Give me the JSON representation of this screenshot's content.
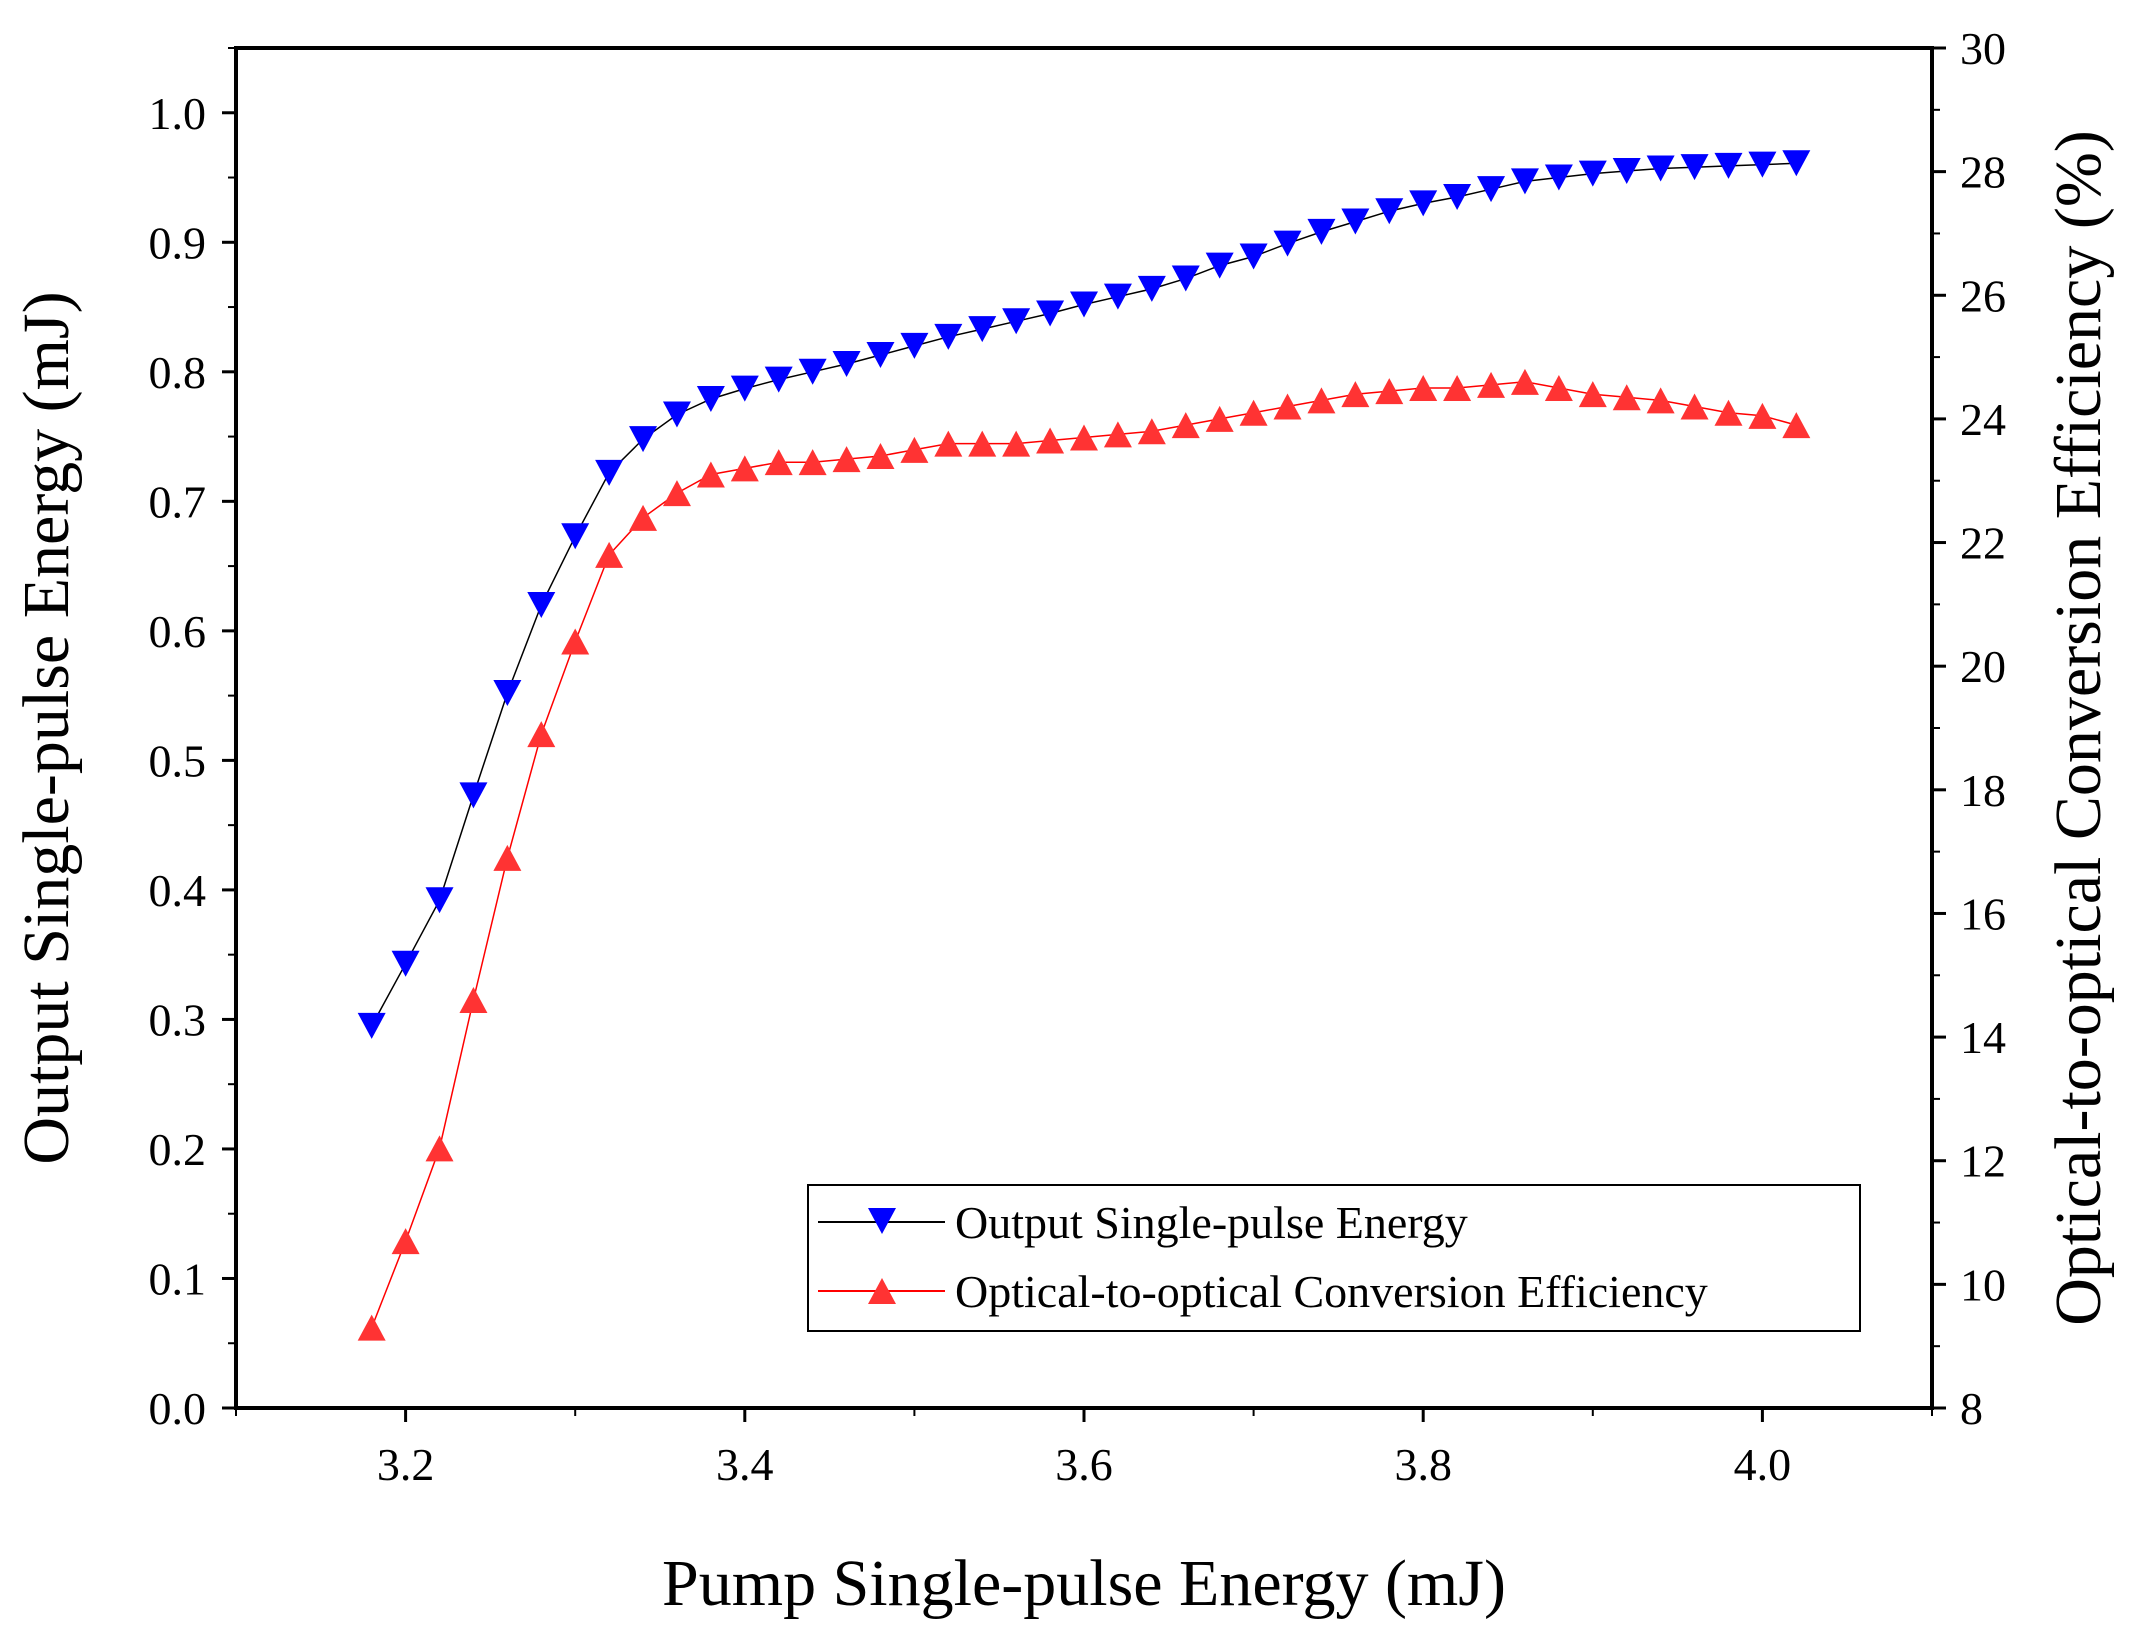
{
  "chart_data": {
    "type": "line",
    "title": "",
    "xlabel": "Pump Single-pulse Energy (mJ)",
    "ylabel": "Output Single-pulse Energy (mJ)",
    "y2label": "Optical-to-optical Conversion Efficiency (%)",
    "xlim": [
      3.1,
      4.1
    ],
    "ylim": [
      0.0,
      1.05
    ],
    "y2lim": [
      8,
      30
    ],
    "xticks": [
      3.2,
      3.4,
      3.6,
      3.8,
      4.0
    ],
    "xtick_labels": [
      "3.2",
      "3.4",
      "3.6",
      "3.8",
      "4.0"
    ],
    "yticks": [
      0.0,
      0.1,
      0.2,
      0.3,
      0.4,
      0.5,
      0.6,
      0.7,
      0.8,
      0.9,
      1.0
    ],
    "ytick_labels": [
      "0.0",
      "0.1",
      "0.2",
      "0.3",
      "0.4",
      "0.5",
      "0.6",
      "0.7",
      "0.8",
      "0.9",
      "1.0"
    ],
    "y2ticks": [
      8,
      10,
      12,
      14,
      16,
      18,
      20,
      22,
      24,
      26,
      28,
      30
    ],
    "y2tick_labels": [
      "8",
      "10",
      "12",
      "14",
      "16",
      "18",
      "20",
      "22",
      "24",
      "26",
      "28",
      "30"
    ],
    "grid": false,
    "legend_position": "bottom-right",
    "x": [
      3.18,
      3.2,
      3.22,
      3.24,
      3.26,
      3.28,
      3.3,
      3.32,
      3.34,
      3.36,
      3.38,
      3.4,
      3.42,
      3.44,
      3.46,
      3.48,
      3.5,
      3.52,
      3.54,
      3.56,
      3.58,
      3.6,
      3.62,
      3.64,
      3.66,
      3.68,
      3.7,
      3.72,
      3.74,
      3.76,
      3.78,
      3.8,
      3.82,
      3.84,
      3.86,
      3.88,
      3.9,
      3.92,
      3.94,
      3.96,
      3.98,
      4.0,
      4.02
    ],
    "series": [
      {
        "name": "Output Single-pulse Energy",
        "axis": "left",
        "color": "#0000ff",
        "line_color": "#000000",
        "marker": "triangle-down",
        "values": [
          0.295,
          0.343,
          0.392,
          0.473,
          0.552,
          0.62,
          0.673,
          0.722,
          0.748,
          0.767,
          0.779,
          0.787,
          0.794,
          0.8,
          0.806,
          0.813,
          0.82,
          0.827,
          0.833,
          0.839,
          0.845,
          0.852,
          0.858,
          0.864,
          0.872,
          0.882,
          0.889,
          0.899,
          0.908,
          0.916,
          0.924,
          0.93,
          0.935,
          0.941,
          0.947,
          0.95,
          0.953,
          0.955,
          0.957,
          0.958,
          0.959,
          0.96,
          0.961
        ]
      },
      {
        "name": "Optical-to-optical Conversion Efficiency",
        "axis": "right",
        "color": "#ff3333",
        "line_color": "#ff0000",
        "marker": "triangle-up",
        "values": [
          9.3,
          10.7,
          12.2,
          14.6,
          16.9,
          18.9,
          20.4,
          21.8,
          22.4,
          22.8,
          23.1,
          23.2,
          23.3,
          23.3,
          23.35,
          23.4,
          23.5,
          23.6,
          23.6,
          23.6,
          23.65,
          23.7,
          23.75,
          23.8,
          23.9,
          24.0,
          24.1,
          24.2,
          24.3,
          24.4,
          24.45,
          24.5,
          24.5,
          24.55,
          24.6,
          24.5,
          24.4,
          24.35,
          24.3,
          24.2,
          24.1,
          24.05,
          23.9
        ]
      }
    ]
  }
}
